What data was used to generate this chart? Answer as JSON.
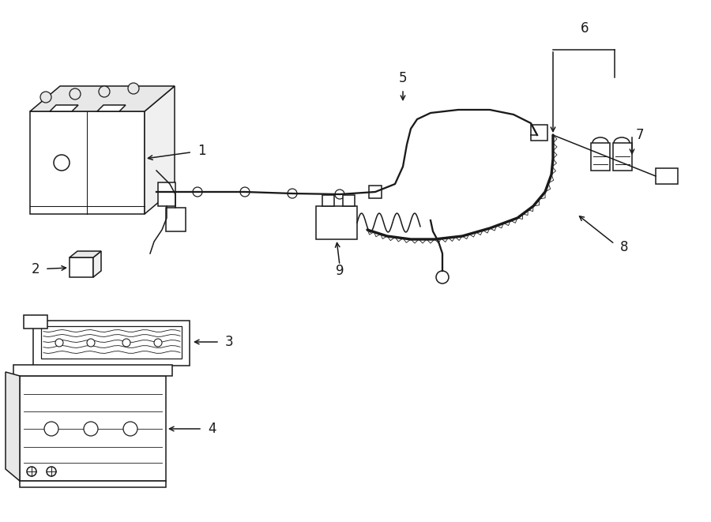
{
  "bg_color": "#ffffff",
  "line_color": "#1a1a1a",
  "fig_width": 9.0,
  "fig_height": 6.61,
  "dpi": 100,
  "lw": 1.1,
  "label_fontsize": 12
}
